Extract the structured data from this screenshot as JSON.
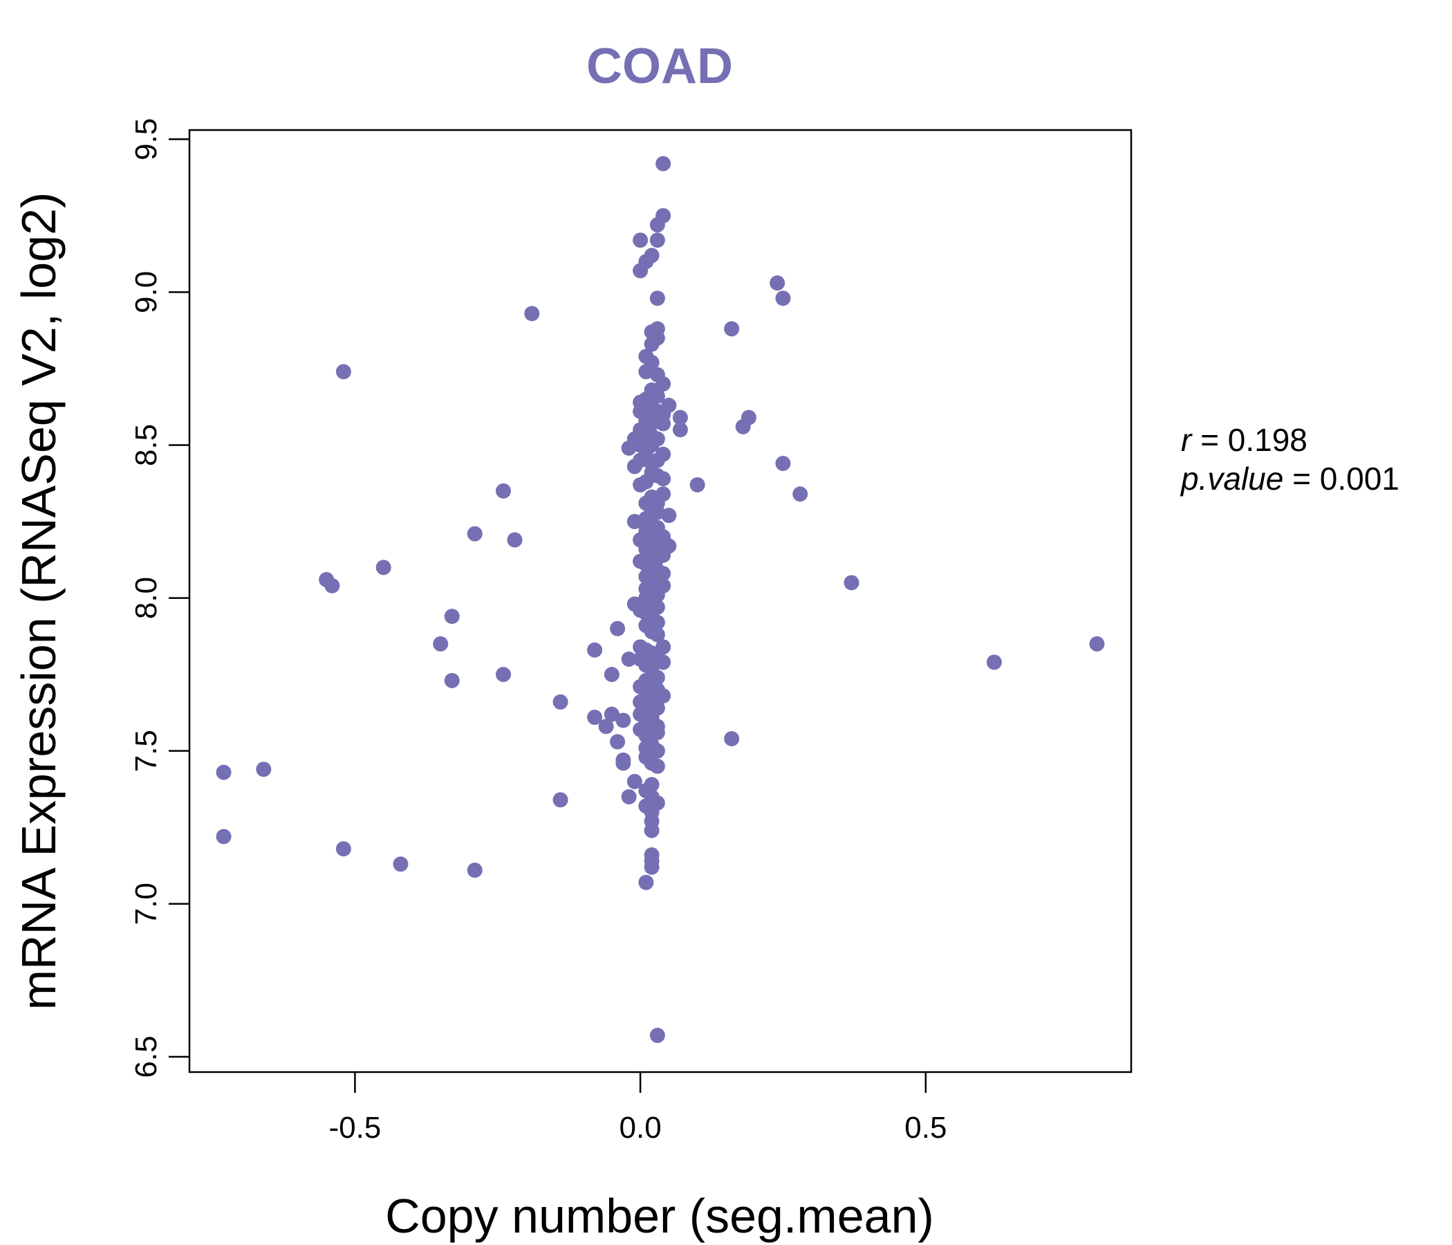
{
  "chart_data": {
    "type": "scatter",
    "title": "COAD",
    "xlabel": "Copy number (seg.mean)",
    "ylabel": "mRNA Expression (RNASeq V2, log2)",
    "xlim": [
      -0.79,
      0.86
    ],
    "ylim": [
      6.45,
      9.53
    ],
    "xticks": [
      -0.5,
      0.0,
      0.5
    ],
    "xtick_labels": [
      "-0.5",
      "0.0",
      "0.5"
    ],
    "yticks": [
      6.5,
      7.0,
      7.5,
      8.0,
      8.5,
      9.0,
      9.5
    ],
    "ytick_labels": [
      "6.5",
      "7.0",
      "7.5",
      "8.0",
      "8.5",
      "9.0",
      "9.5"
    ],
    "point_color": "#7570b3",
    "grid": false,
    "stats": {
      "r_label": "r",
      "r_value": "0.198",
      "p_label": "p.value",
      "p_value": "0.001"
    },
    "points": [
      [
        0.04,
        9.42
      ],
      [
        0.04,
        9.25
      ],
      [
        0.03,
        9.22
      ],
      [
        0.0,
        9.17
      ],
      [
        0.03,
        9.17
      ],
      [
        0.02,
        9.12
      ],
      [
        0.01,
        9.1
      ],
      [
        0.0,
        9.07
      ],
      [
        0.24,
        9.03
      ],
      [
        0.25,
        8.98
      ],
      [
        0.03,
        8.98
      ],
      [
        -0.19,
        8.93
      ],
      [
        0.16,
        8.88
      ],
      [
        0.03,
        8.88
      ],
      [
        0.02,
        8.87
      ],
      [
        0.03,
        8.85
      ],
      [
        0.02,
        8.83
      ],
      [
        0.01,
        8.79
      ],
      [
        0.02,
        8.77
      ],
      [
        -0.52,
        8.74
      ],
      [
        0.01,
        8.74
      ],
      [
        0.03,
        8.73
      ],
      [
        0.04,
        8.7
      ],
      [
        0.02,
        8.68
      ],
      [
        0.03,
        8.66
      ],
      [
        0.0,
        8.64
      ],
      [
        0.01,
        8.65
      ],
      [
        0.05,
        8.63
      ],
      [
        0.02,
        8.62
      ],
      [
        0.0,
        8.61
      ],
      [
        0.03,
        8.61
      ],
      [
        0.04,
        8.6
      ],
      [
        0.07,
        8.59
      ],
      [
        0.19,
        8.59
      ],
      [
        0.18,
        8.56
      ],
      [
        0.01,
        8.58
      ],
      [
        0.02,
        8.57
      ],
      [
        0.04,
        8.57
      ],
      [
        0.07,
        8.55
      ],
      [
        0.0,
        8.55
      ],
      [
        0.01,
        8.54
      ],
      [
        0.02,
        8.53
      ],
      [
        0.03,
        8.52
      ],
      [
        -0.01,
        8.52
      ],
      [
        0.0,
        8.5
      ],
      [
        0.02,
        8.5
      ],
      [
        -0.02,
        8.49
      ],
      [
        0.01,
        8.48
      ],
      [
        0.04,
        8.47
      ],
      [
        0.03,
        8.45
      ],
      [
        0.0,
        8.45
      ],
      [
        0.02,
        8.44
      ],
      [
        0.25,
        8.44
      ],
      [
        -0.01,
        8.43
      ],
      [
        0.02,
        8.41
      ],
      [
        0.03,
        8.4
      ],
      [
        0.04,
        8.39
      ],
      [
        0.01,
        8.38
      ],
      [
        0.0,
        8.37
      ],
      [
        0.1,
        8.37
      ],
      [
        -0.24,
        8.35
      ],
      [
        0.28,
        8.34
      ],
      [
        0.04,
        8.34
      ],
      [
        0.02,
        8.33
      ],
      [
        0.03,
        8.31
      ],
      [
        0.01,
        8.31
      ],
      [
        0.02,
        8.29
      ],
      [
        0.03,
        8.28
      ],
      [
        0.05,
        8.27
      ],
      [
        0.01,
        8.26
      ],
      [
        -0.01,
        8.25
      ],
      [
        0.02,
        8.24
      ],
      [
        0.03,
        8.23
      ],
      [
        0.01,
        8.22
      ],
      [
        -0.29,
        8.21
      ],
      [
        0.04,
        8.2
      ],
      [
        0.02,
        8.2
      ],
      [
        0.0,
        8.19
      ],
      [
        -0.22,
        8.19
      ],
      [
        0.03,
        8.18
      ],
      [
        0.05,
        8.17
      ],
      [
        0.01,
        8.16
      ],
      [
        0.02,
        8.15
      ],
      [
        0.04,
        8.14
      ],
      [
        0.03,
        8.13
      ],
      [
        0.0,
        8.12
      ],
      [
        0.01,
        8.11
      ],
      [
        -0.45,
        8.1
      ],
      [
        0.02,
        8.1
      ],
      [
        0.03,
        8.09
      ],
      [
        0.04,
        8.08
      ],
      [
        0.01,
        8.07
      ],
      [
        -0.55,
        8.06
      ],
      [
        0.02,
        8.06
      ],
      [
        0.03,
        8.05
      ],
      [
        -0.54,
        8.04
      ],
      [
        0.37,
        8.05
      ],
      [
        0.04,
        8.04
      ],
      [
        0.01,
        8.03
      ],
      [
        0.02,
        8.02
      ],
      [
        0.03,
        8.01
      ],
      [
        0.01,
        8.0
      ],
      [
        0.02,
        7.99
      ],
      [
        -0.01,
        7.98
      ],
      [
        0.03,
        7.97
      ],
      [
        0.0,
        7.96
      ],
      [
        0.01,
        7.95
      ],
      [
        0.02,
        7.94
      ],
      [
        -0.33,
        7.94
      ],
      [
        0.03,
        7.92
      ],
      [
        0.01,
        7.91
      ],
      [
        -0.04,
        7.9
      ],
      [
        0.02,
        7.89
      ],
      [
        0.03,
        7.88
      ],
      [
        -0.35,
        7.85
      ],
      [
        0.8,
        7.85
      ],
      [
        0.0,
        7.84
      ],
      [
        0.04,
        7.84
      ],
      [
        0.01,
        7.83
      ],
      [
        -0.08,
        7.83
      ],
      [
        0.02,
        7.82
      ],
      [
        0.03,
        7.81
      ],
      [
        0.0,
        7.8
      ],
      [
        -0.02,
        7.8
      ],
      [
        0.04,
        7.79
      ],
      [
        0.62,
        7.79
      ],
      [
        0.01,
        7.78
      ],
      [
        0.02,
        7.77
      ],
      [
        -0.24,
        7.75
      ],
      [
        -0.05,
        7.75
      ],
      [
        0.03,
        7.74
      ],
      [
        0.01,
        7.73
      ],
      [
        -0.33,
        7.73
      ],
      [
        0.02,
        7.72
      ],
      [
        0.0,
        7.71
      ],
      [
        0.03,
        7.7
      ],
      [
        0.01,
        7.69
      ],
      [
        0.04,
        7.68
      ],
      [
        0.02,
        7.67
      ],
      [
        0.0,
        7.66
      ],
      [
        -0.14,
        7.66
      ],
      [
        0.01,
        7.65
      ],
      [
        0.03,
        7.64
      ],
      [
        0.02,
        7.63
      ],
      [
        -0.05,
        7.62
      ],
      [
        0.0,
        7.62
      ],
      [
        -0.08,
        7.61
      ],
      [
        0.02,
        7.61
      ],
      [
        -0.03,
        7.6
      ],
      [
        0.01,
        7.59
      ],
      [
        0.03,
        7.58
      ],
      [
        -0.06,
        7.58
      ],
      [
        0.0,
        7.57
      ],
      [
        0.02,
        7.56
      ],
      [
        0.03,
        7.56
      ],
      [
        0.01,
        7.55
      ],
      [
        0.16,
        7.54
      ],
      [
        -0.04,
        7.53
      ],
      [
        0.02,
        7.52
      ],
      [
        0.01,
        7.51
      ],
      [
        0.03,
        7.5
      ],
      [
        0.01,
        7.48
      ],
      [
        -0.03,
        7.47
      ],
      [
        0.02,
        7.46
      ],
      [
        -0.03,
        7.46
      ],
      [
        0.03,
        7.45
      ],
      [
        -0.66,
        7.44
      ],
      [
        -0.73,
        7.43
      ],
      [
        -0.01,
        7.4
      ],
      [
        0.02,
        7.39
      ],
      [
        0.01,
        7.37
      ],
      [
        -0.02,
        7.35
      ],
      [
        0.02,
        7.35
      ],
      [
        -0.14,
        7.34
      ],
      [
        0.03,
        7.33
      ],
      [
        0.01,
        7.32
      ],
      [
        0.02,
        7.3
      ],
      [
        0.02,
        7.27
      ],
      [
        0.02,
        7.24
      ],
      [
        -0.73,
        7.22
      ],
      [
        -0.52,
        7.18
      ],
      [
        0.02,
        7.16
      ],
      [
        0.02,
        7.14
      ],
      [
        -0.42,
        7.13
      ],
      [
        0.02,
        7.12
      ],
      [
        -0.29,
        7.11
      ],
      [
        0.01,
        7.07
      ],
      [
        0.03,
        6.57
      ]
    ]
  }
}
